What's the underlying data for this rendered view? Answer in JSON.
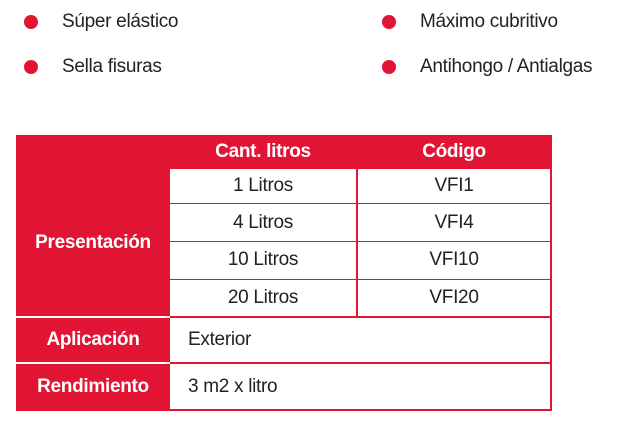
{
  "colors": {
    "accent": "#e11433",
    "text": "#222222",
    "header_text": "#ffffff"
  },
  "features": [
    {
      "label": "Súper elástico",
      "icon": "red-dot-icon"
    },
    {
      "label": "Sella fisuras",
      "icon": "red-dot-icon"
    },
    {
      "label": "Máximo cubritivo",
      "icon": "red-dot-icon"
    },
    {
      "label": "Antihongo / Antialgas",
      "icon": "red-dot-icon"
    }
  ],
  "table": {
    "headers": [
      "",
      "Cant. litros",
      "Código"
    ],
    "presentacion": {
      "label": "Presentación",
      "rows": [
        {
          "cantidad": "1 Litros",
          "codigo": "VFI1"
        },
        {
          "cantidad": "4 Litros",
          "codigo": "VFI4"
        },
        {
          "cantidad": "10 Litros",
          "codigo": "VFI10"
        },
        {
          "cantidad": "20 Litros",
          "codigo": "VFI20"
        }
      ]
    },
    "aplicacion": {
      "label": "Aplicación",
      "value": "Exterior"
    },
    "rendimiento": {
      "label": "Rendimiento",
      "value": "3 m2 x litro"
    }
  }
}
